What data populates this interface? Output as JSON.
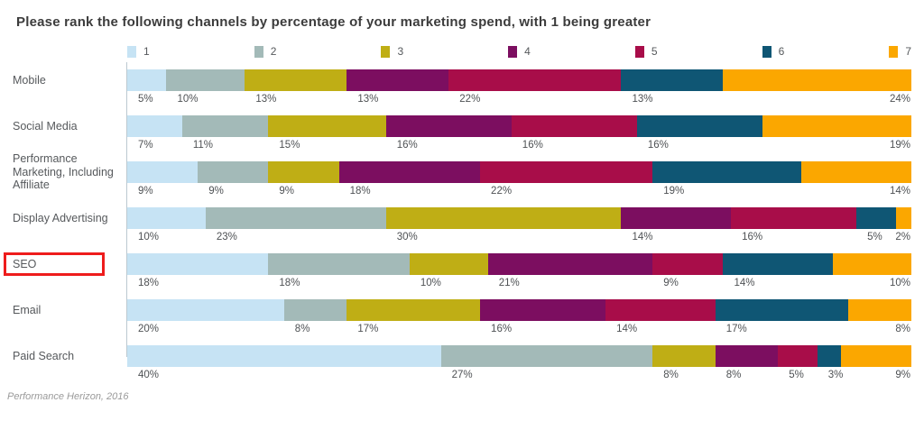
{
  "title": "Please rank the following channels by percentage of your marketing spend, with 1 being greater",
  "source_note": "Performance Herizon, 2016",
  "chart_data": {
    "type": "bar",
    "subtype": "stacked-horizontal",
    "unit": "%",
    "title": "Please rank the following channels by percentage of your marketing spend, with 1 being greater",
    "legend_position": "top",
    "legend": [
      {
        "label": "1",
        "color": "#C6E3F4"
      },
      {
        "label": "2",
        "color": "#A3BAB8"
      },
      {
        "label": "3",
        "color": "#BFAE15"
      },
      {
        "label": "4",
        "color": "#7C0E60"
      },
      {
        "label": "5",
        "color": "#A80D49"
      },
      {
        "label": "6",
        "color": "#0F5674"
      },
      {
        "label": "7",
        "color": "#FBA700"
      }
    ],
    "categories": [
      "Mobile",
      "Social Media",
      "Performance Marketing, Including Affiliate",
      "Display Advertising",
      "SEO",
      "Email",
      "Paid Search"
    ],
    "rows": [
      {
        "label": "Mobile",
        "values": [
          5,
          10,
          13,
          13,
          22,
          13,
          24
        ],
        "highlighted": false
      },
      {
        "label": "Social Media",
        "values": [
          7,
          11,
          15,
          16,
          16,
          16,
          19
        ],
        "highlighted": false
      },
      {
        "label": "Performance Marketing, Including Affiliate",
        "values": [
          9,
          9,
          9,
          18,
          22,
          19,
          14
        ],
        "highlighted": false
      },
      {
        "label": "Display Advertising",
        "values": [
          10,
          23,
          30,
          14,
          16,
          5,
          2
        ],
        "highlighted": false
      },
      {
        "label": "SEO",
        "values": [
          18,
          18,
          10,
          21,
          9,
          14,
          10
        ],
        "highlighted": true
      },
      {
        "label": "Email",
        "values": [
          20,
          8,
          17,
          16,
          14,
          17,
          8
        ],
        "highlighted": false
      },
      {
        "label": "Paid Search",
        "values": [
          40,
          27,
          8,
          8,
          5,
          3,
          9
        ],
        "highlighted": false
      }
    ],
    "highlighted_category": "SEO",
    "highlight_color": "#EE1C1C",
    "xlim": [
      0,
      100
    ],
    "grid": false,
    "value_labels": "below-segments"
  }
}
